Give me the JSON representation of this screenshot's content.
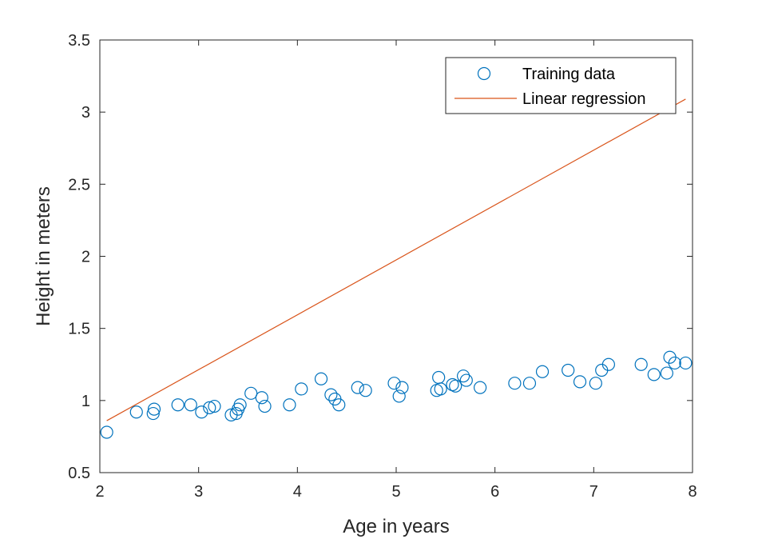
{
  "chart_data": {
    "type": "scatter",
    "title": "",
    "xlabel": "Age in years",
    "ylabel": "Height in meters",
    "xlim": [
      2,
      8
    ],
    "ylim": [
      0.5,
      3.5
    ],
    "xticks": [
      2,
      3,
      4,
      5,
      6,
      7,
      8
    ],
    "xtick_labels": [
      "2",
      "3",
      "4",
      "5",
      "6",
      "7",
      "8"
    ],
    "yticks": [
      0.5,
      1,
      1.5,
      2,
      2.5,
      3,
      3.5
    ],
    "ytick_labels": [
      "0.5",
      "1",
      "1.5",
      "2",
      "2.5",
      "3",
      "3.5"
    ],
    "grid": false,
    "legend_position": "top-right",
    "series": [
      {
        "name": "Training data",
        "kind": "scatter",
        "marker": "open-circle",
        "color": "#0072BD",
        "points": [
          [
            2.07,
            0.78
          ],
          [
            2.37,
            0.92
          ],
          [
            2.54,
            0.91
          ],
          [
            2.55,
            0.94
          ],
          [
            2.79,
            0.97
          ],
          [
            2.92,
            0.97
          ],
          [
            3.03,
            0.92
          ],
          [
            3.11,
            0.95
          ],
          [
            3.16,
            0.96
          ],
          [
            3.33,
            0.9
          ],
          [
            3.38,
            0.91
          ],
          [
            3.4,
            0.94
          ],
          [
            3.42,
            0.97
          ],
          [
            3.53,
            1.05
          ],
          [
            3.64,
            1.02
          ],
          [
            3.67,
            0.96
          ],
          [
            3.92,
            0.97
          ],
          [
            4.04,
            1.08
          ],
          [
            4.24,
            1.15
          ],
          [
            4.34,
            1.04
          ],
          [
            4.38,
            1.01
          ],
          [
            4.42,
            0.97
          ],
          [
            4.61,
            1.09
          ],
          [
            4.69,
            1.07
          ],
          [
            4.98,
            1.12
          ],
          [
            5.03,
            1.03
          ],
          [
            5.06,
            1.09
          ],
          [
            5.41,
            1.07
          ],
          [
            5.43,
            1.16
          ],
          [
            5.45,
            1.08
          ],
          [
            5.57,
            1.11
          ],
          [
            5.6,
            1.1
          ],
          [
            5.68,
            1.17
          ],
          [
            5.71,
            1.14
          ],
          [
            5.85,
            1.09
          ],
          [
            6.2,
            1.12
          ],
          [
            6.35,
            1.12
          ],
          [
            6.48,
            1.2
          ],
          [
            6.74,
            1.21
          ],
          [
            6.86,
            1.13
          ],
          [
            7.02,
            1.12
          ],
          [
            7.08,
            1.21
          ],
          [
            7.15,
            1.25
          ],
          [
            7.48,
            1.25
          ],
          [
            7.61,
            1.18
          ],
          [
            7.74,
            1.19
          ],
          [
            7.77,
            1.3
          ],
          [
            7.82,
            1.26
          ],
          [
            7.93,
            1.26
          ]
        ]
      },
      {
        "name": "Linear regression",
        "kind": "line",
        "color": "#D95319",
        "points": [
          [
            2.07,
            0.86
          ],
          [
            7.93,
            3.09
          ]
        ]
      }
    ]
  }
}
